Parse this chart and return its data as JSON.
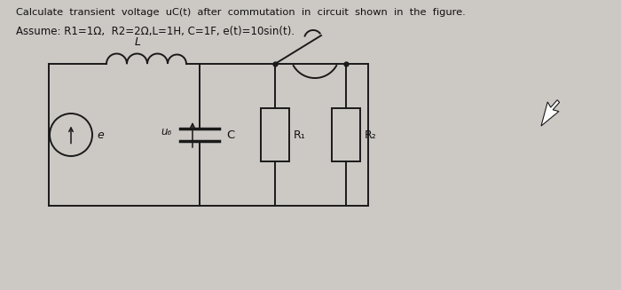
{
  "title_line1": "Calculate  transient  voltage  uC(t)  after  commutation  in  circuit  shown  in  the  figure.",
  "title_line2": "Assume: R1=1Ω,  R2=2Ω,L=1H, C=1F, e(t)=10sin(t).",
  "background_color": "#ccc8c4",
  "circuit_color": "#1a1a1a",
  "text_color": "#111111",
  "label_L": "L",
  "label_e": "e",
  "label_uC": "u₆",
  "label_C": "C",
  "label_R1": "R₁",
  "label_R2": "R₂",
  "figsize": [
    7.0,
    3.27
  ],
  "dpi": 100
}
